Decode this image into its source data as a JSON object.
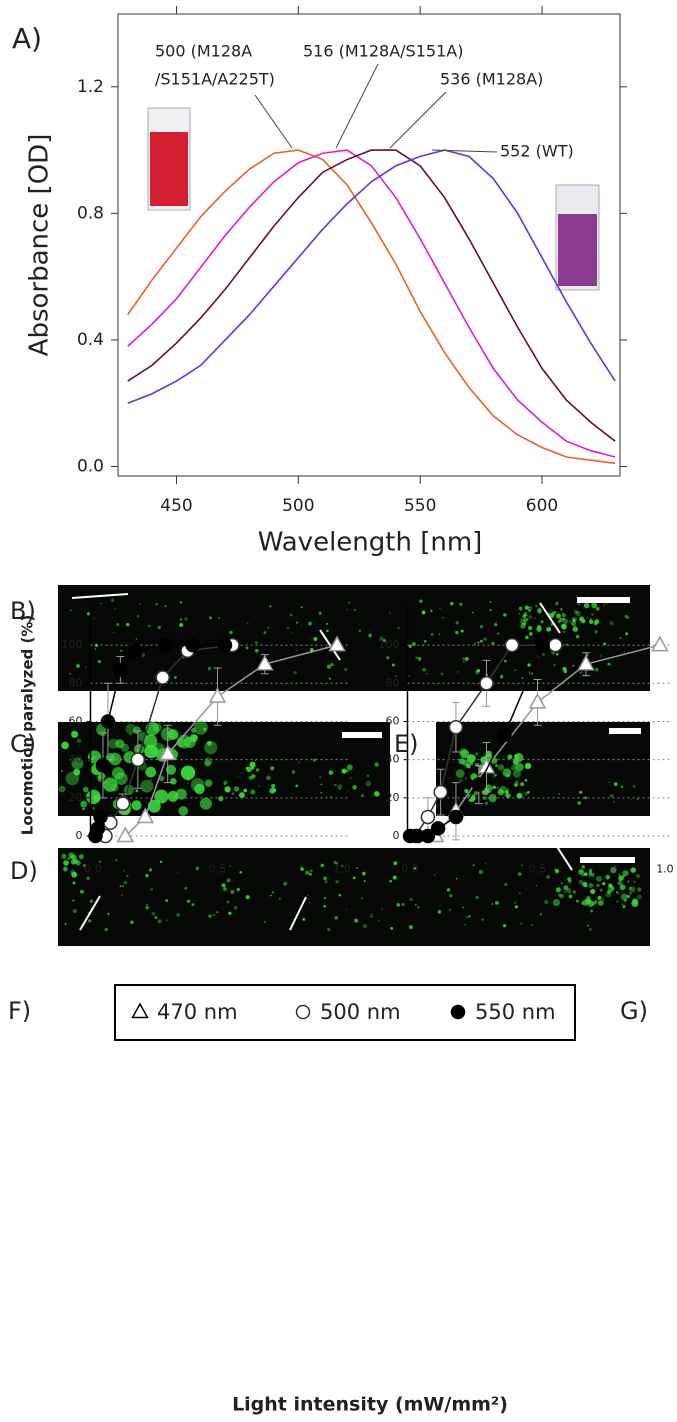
{
  "image_panels": [
    "B)",
    "C)",
    "D)",
    "E)"
  ],
  "chart_data": [
    {
      "type": "line",
      "panel_label": "A)",
      "x_label": "Wavelength [nm]",
      "y_label": "Absorbance [OD]",
      "xlim": [
        426,
        632
      ],
      "ylim": [
        -0.03,
        1.43
      ],
      "xticks": [
        450,
        500,
        550,
        600
      ],
      "yticks": [
        {
          "value": 0,
          "label": "0.0"
        },
        0.4,
        0.8,
        1.2
      ],
      "frame": true,
      "x": [
        430,
        440,
        450,
        460,
        470,
        480,
        490,
        500,
        510,
        520,
        530,
        540,
        550,
        560,
        570,
        580,
        590,
        600,
        610,
        620,
        630
      ],
      "series": [
        {
          "color": "#e8622a",
          "values": [
            0.48,
            0.59,
            0.69,
            0.79,
            0.87,
            0.94,
            0.99,
            1.0,
            0.97,
            0.89,
            0.77,
            0.64,
            0.49,
            0.36,
            0.25,
            0.16,
            0.1,
            0.06,
            0.03,
            0.02,
            0.01
          ]
        },
        {
          "color": "#e020c0",
          "values": [
            0.38,
            0.45,
            0.53,
            0.63,
            0.73,
            0.82,
            0.9,
            0.96,
            0.99,
            1.0,
            0.95,
            0.85,
            0.72,
            0.58,
            0.44,
            0.31,
            0.21,
            0.14,
            0.08,
            0.05,
            0.03
          ]
        },
        {
          "color": "#5a1040",
          "values": [
            0.27,
            0.32,
            0.39,
            0.47,
            0.56,
            0.66,
            0.76,
            0.85,
            0.93,
            0.97,
            1.0,
            1.0,
            0.95,
            0.85,
            0.72,
            0.58,
            0.44,
            0.31,
            0.21,
            0.14,
            0.08
          ]
        },
        {
          "color": "#6a30e0",
          "values": [
            0.2,
            0.23,
            0.27,
            0.32,
            0.4,
            0.48,
            0.57,
            0.66,
            0.75,
            0.83,
            0.9,
            0.95,
            0.98,
            1.0,
            0.98,
            0.91,
            0.8,
            0.66,
            0.52,
            0.39,
            0.27
          ]
        }
      ],
      "annotations": [
        "500 (M128A",
        "/S151A/A225T)",
        "516 (M128A/S151A)",
        "536 (M128A)",
        "552 (WT)"
      ]
    },
    {
      "type": "line",
      "panel_label": "F)",
      "x_label": "Light intensity (mW/mm²)",
      "y_label": "Locomotion paralyzed (%)",
      "xlim": [
        -0.01,
        1.03
      ],
      "ylim": [
        -6,
        121
      ],
      "xticks": [
        {
          "value": 0,
          "label": "0.0"
        },
        0.5,
        {
          "value": 1,
          "label": "1.0"
        }
      ],
      "yticks": [
        0,
        20,
        40,
        60,
        80,
        100
      ],
      "grid": true,
      "series": [
        {
          "name": "470 nm",
          "color": "#999999",
          "marker": "triangle",
          "x": [
            0.13,
            0.21,
            0.3,
            0.5,
            0.69,
            0.98
          ],
          "values": [
            0,
            10,
            43,
            73,
            90,
            100
          ],
          "errors": [
            null,
            null,
            15,
            15,
            5,
            null
          ]
        },
        {
          "name": "500 nm",
          "color": "#333333",
          "marker": "open-circle",
          "x": [
            0.05,
            0.07,
            0.12,
            0.18,
            0.28,
            0.38,
            0.56
          ],
          "values": [
            0,
            7,
            17,
            40,
            83,
            97,
            100
          ],
          "errors": [
            null,
            null,
            5,
            15,
            3,
            null,
            null
          ]
        },
        {
          "name": "550 nm",
          "color": "#000000",
          "marker": "filled-circle",
          "x": [
            0.01,
            0.02,
            0.03,
            0.04,
            0.06,
            0.11,
            0.17,
            0.29,
            0.4,
            0.53
          ],
          "values": [
            0,
            4,
            10,
            37,
            60,
            87,
            97,
            100,
            100,
            100
          ],
          "errors": [
            null,
            null,
            null,
            17,
            20,
            7,
            null,
            null,
            null,
            null
          ]
        }
      ]
    },
    {
      "type": "line",
      "panel_label": "G)",
      "xlim": [
        -0.01,
        1.03
      ],
      "ylim": [
        -6,
        121
      ],
      "xticks": [
        {
          "value": 0,
          "label": "0.0"
        },
        0.5,
        {
          "value": 1,
          "label": "1.0"
        }
      ],
      "yticks": [
        0,
        20,
        40,
        60,
        80,
        100
      ],
      "grid": true,
      "series": [
        {
          "color": "#999999",
          "marker": "triangle",
          "x": [
            0.1,
            0.18,
            0.3,
            0.5,
            0.69,
            0.98
          ],
          "values": [
            0,
            13,
            36,
            70,
            90,
            100
          ],
          "errors": [
            null,
            15,
            13,
            12,
            6,
            null
          ]
        },
        {
          "color": "#333333",
          "marker": "open-circle",
          "x": [
            0.02,
            0.07,
            0.12,
            0.18,
            0.3,
            0.4,
            0.57
          ],
          "values": [
            0,
            10,
            23,
            57,
            80,
            100,
            100
          ],
          "errors": [
            null,
            10,
            12,
            13,
            12,
            null,
            null
          ]
        },
        {
          "color": "#000000",
          "marker": "filled-circle",
          "x": [
            0,
            0.03,
            0.07,
            0.11,
            0.18,
            0.27,
            0.37,
            0.52
          ],
          "values": [
            0,
            0,
            0,
            4,
            10,
            27,
            53,
            100
          ],
          "errors": [
            null,
            null,
            null,
            null,
            null,
            10,
            null,
            null
          ]
        }
      ]
    }
  ]
}
